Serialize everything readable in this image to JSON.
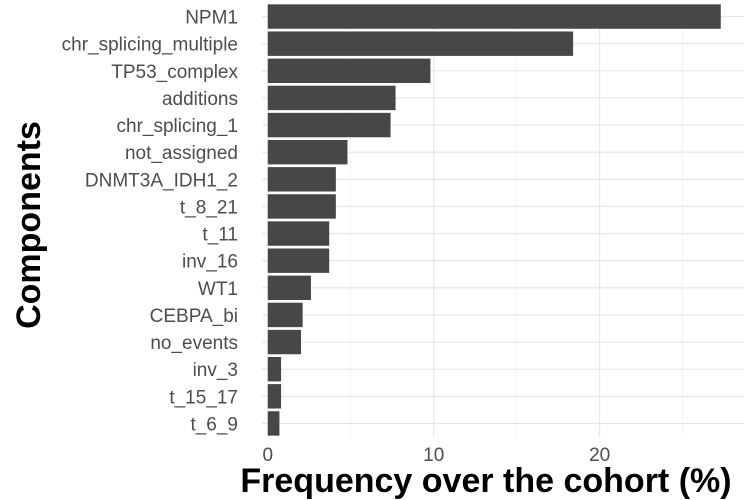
{
  "chart_data": {
    "type": "bar",
    "orientation": "horizontal",
    "title": "",
    "xlabel": "Frequency over the cohort (%)",
    "ylabel": "Components",
    "categories": [
      "NPM1",
      "chr_splicing_multiple",
      "TP53_complex",
      "additions",
      "chr_splicing_1",
      "not_assigned",
      "DNMT3A_IDH1_2",
      "t_8_21",
      "t_11",
      "inv_16",
      "WT1",
      "CEBPA_bi",
      "no_events",
      "inv_3",
      "t_15_17",
      "t_6_9"
    ],
    "values": [
      27.3,
      18.4,
      9.8,
      7.7,
      7.4,
      4.8,
      4.1,
      4.1,
      3.7,
      3.7,
      2.6,
      2.1,
      2.0,
      0.8,
      0.8,
      0.7
    ],
    "xlim": [
      -0.35,
      28.7
    ],
    "xticks": [
      0,
      10,
      20
    ],
    "xtick_labels": [
      "0",
      "10",
      "20"
    ],
    "bar_color": "#474747",
    "grid": true
  }
}
